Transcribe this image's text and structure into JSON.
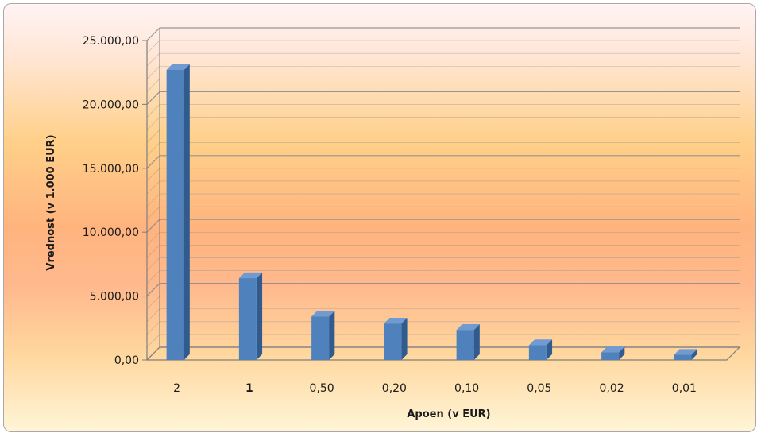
{
  "chart_data": {
    "type": "bar",
    "style": "3d-column",
    "categories": [
      "2",
      "1",
      "0,50",
      "0,20",
      "0,10",
      "0,05",
      "0,02",
      "0,01"
    ],
    "values": [
      22700,
      6400,
      3400,
      2850,
      2350,
      1150,
      600,
      400
    ],
    "xlabel": "Apoen (v EUR)",
    "ylabel": "Vrednost (v 1.000 EUR)",
    "ylim": [
      0,
      25000
    ],
    "yticks": [
      {
        "value": 0,
        "label": "0,00"
      },
      {
        "value": 5000,
        "label": "5.000,00"
      },
      {
        "value": 10000,
        "label": "10.000,00"
      },
      {
        "value": 15000,
        "label": "15.000,00"
      },
      {
        "value": 20000,
        "label": "20.000,00"
      },
      {
        "value": 25000,
        "label": "25.000,00"
      }
    ],
    "grid": true,
    "minor_gridlines_per_major": 5,
    "legend": "none",
    "colors": {
      "bar_front": "#4f81bd",
      "bar_side": "#2f5b8f",
      "bar_top": "#6f9ad2",
      "grid": "#8c8c8c",
      "axis": "#7f7f7f"
    }
  }
}
